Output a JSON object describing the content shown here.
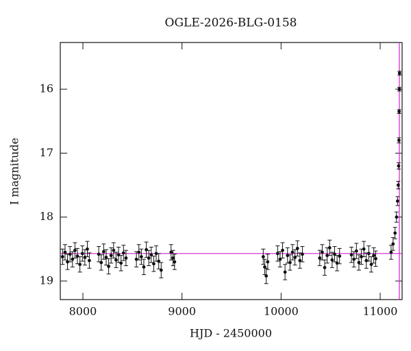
{
  "chart_data": {
    "type": "scatter",
    "title": "OGLE-2026-BLG-0158",
    "x_label": "HJD - 2450000",
    "y_label": "I magnitude",
    "xlim": [
      7772,
      11221
    ],
    "ylim": [
      19.29,
      15.27
    ],
    "xticks": [
      8000,
      9000,
      10000,
      11000
    ],
    "yticks": [
      16,
      17,
      18,
      19
    ],
    "reference_lines": {
      "y": 18.57,
      "x": 11193,
      "color": "#d21fd2"
    },
    "series": [
      {
        "color": "#111111",
        "x": [
          7795,
          7820,
          7845,
          7870,
          7895,
          7920,
          7945,
          7970,
          7995,
          8020,
          8045,
          8065,
          8160,
          8185,
          8210,
          8235,
          8260,
          8285,
          8310,
          8335,
          8360,
          8385,
          8410,
          8435,
          8540,
          8565,
          8590,
          8615,
          8640,
          8665,
          8690,
          8715,
          8740,
          8765,
          8790,
          8890,
          8910,
          8925,
          9820,
          9835,
          9850,
          9865,
          9965,
          9990,
          10015,
          10040,
          10065,
          10090,
          10115,
          10140,
          10165,
          10190,
          10215,
          10390,
          10415,
          10440,
          10465,
          10490,
          10515,
          10540,
          10565,
          10590,
          10710,
          10735,
          10760,
          10785,
          10810,
          10835,
          10860,
          10885,
          10910,
          10935,
          10955,
          11110,
          11130,
          11150,
          11165,
          11175,
          11182,
          11186,
          11189,
          11191,
          11193,
          11195
        ],
        "values": [
          18.62,
          18.55,
          18.7,
          18.58,
          18.66,
          18.52,
          18.61,
          18.74,
          18.57,
          18.63,
          18.5,
          18.68,
          18.58,
          18.71,
          18.54,
          18.63,
          18.77,
          18.6,
          18.52,
          18.67,
          18.59,
          18.72,
          18.56,
          18.64,
          18.66,
          18.55,
          18.62,
          18.78,
          18.51,
          18.64,
          18.59,
          18.73,
          18.57,
          18.69,
          18.83,
          18.55,
          18.64,
          18.7,
          18.62,
          18.78,
          18.92,
          18.7,
          18.57,
          18.66,
          18.52,
          18.86,
          18.6,
          18.71,
          18.55,
          18.63,
          18.49,
          18.68,
          18.58,
          18.64,
          18.55,
          18.79,
          18.6,
          18.48,
          18.67,
          18.58,
          18.72,
          18.61,
          18.59,
          18.66,
          18.53,
          18.71,
          18.62,
          18.5,
          18.68,
          18.57,
          18.74,
          18.6,
          18.65,
          18.55,
          18.42,
          18.25,
          18.0,
          17.75,
          17.5,
          17.2,
          16.8,
          16.35,
          16.0,
          15.75
        ],
        "errors": [
          0.12,
          0.12,
          0.12,
          0.12,
          0.12,
          0.12,
          0.12,
          0.12,
          0.12,
          0.12,
          0.12,
          0.12,
          0.12,
          0.12,
          0.12,
          0.12,
          0.12,
          0.12,
          0.12,
          0.12,
          0.12,
          0.12,
          0.12,
          0.12,
          0.12,
          0.12,
          0.12,
          0.12,
          0.12,
          0.12,
          0.12,
          0.12,
          0.12,
          0.12,
          0.12,
          0.12,
          0.12,
          0.12,
          0.12,
          0.12,
          0.12,
          0.12,
          0.12,
          0.12,
          0.12,
          0.12,
          0.12,
          0.12,
          0.12,
          0.12,
          0.12,
          0.12,
          0.12,
          0.12,
          0.12,
          0.12,
          0.12,
          0.12,
          0.12,
          0.12,
          0.12,
          0.12,
          0.12,
          0.12,
          0.12,
          0.12,
          0.12,
          0.12,
          0.12,
          0.12,
          0.12,
          0.12,
          0.12,
          0.11,
          0.1,
          0.09,
          0.08,
          0.07,
          0.06,
          0.05,
          0.04,
          0.03,
          0.03,
          0.03
        ]
      }
    ]
  }
}
